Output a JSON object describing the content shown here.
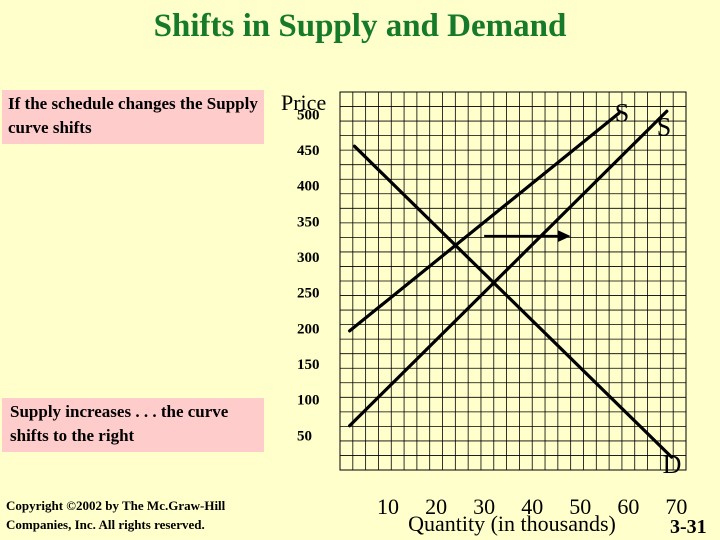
{
  "slide": {
    "title": "Shifts in Supply and Demand",
    "note_top": "If the schedule changes the Supply curve shifts",
    "note_mid": "Supply increases . . . the curve shifts to the right",
    "copyright_line1": "Copyright ©2002 by The Mc.Graw-Hill",
    "copyright_line2": "Companies, Inc.  All rights reserved.",
    "slide_number": "3-31"
  },
  "colors": {
    "background": "#ffffcc",
    "title": "#157a2a",
    "note_box": "#ffcccc",
    "grid": "#000000"
  },
  "chart_data": {
    "type": "line",
    "xlabel": "Quantity (in thousands)",
    "ylabel": "Price",
    "x_ticks": [
      10,
      20,
      30,
      40,
      50,
      60,
      70
    ],
    "y_ticks": [
      50,
      100,
      150,
      200,
      250,
      300,
      350,
      400,
      450,
      500
    ],
    "xlim": [
      0,
      72
    ],
    "ylim": [
      0,
      530
    ],
    "grid": true,
    "series": [
      {
        "name": "S",
        "role": "original-supply",
        "points": [
          [
            2,
            195
          ],
          [
            58,
            500
          ]
        ]
      },
      {
        "name": "S",
        "role": "shifted-supply",
        "points": [
          [
            2,
            62
          ],
          [
            68,
            503
          ]
        ]
      },
      {
        "name": "D",
        "role": "demand",
        "points": [
          [
            3,
            454
          ],
          [
            69,
            18
          ]
        ]
      }
    ],
    "annotations": [
      {
        "type": "arrow",
        "label": "",
        "from": [
          30,
          328
        ],
        "to": [
          48,
          328
        ]
      }
    ]
  }
}
